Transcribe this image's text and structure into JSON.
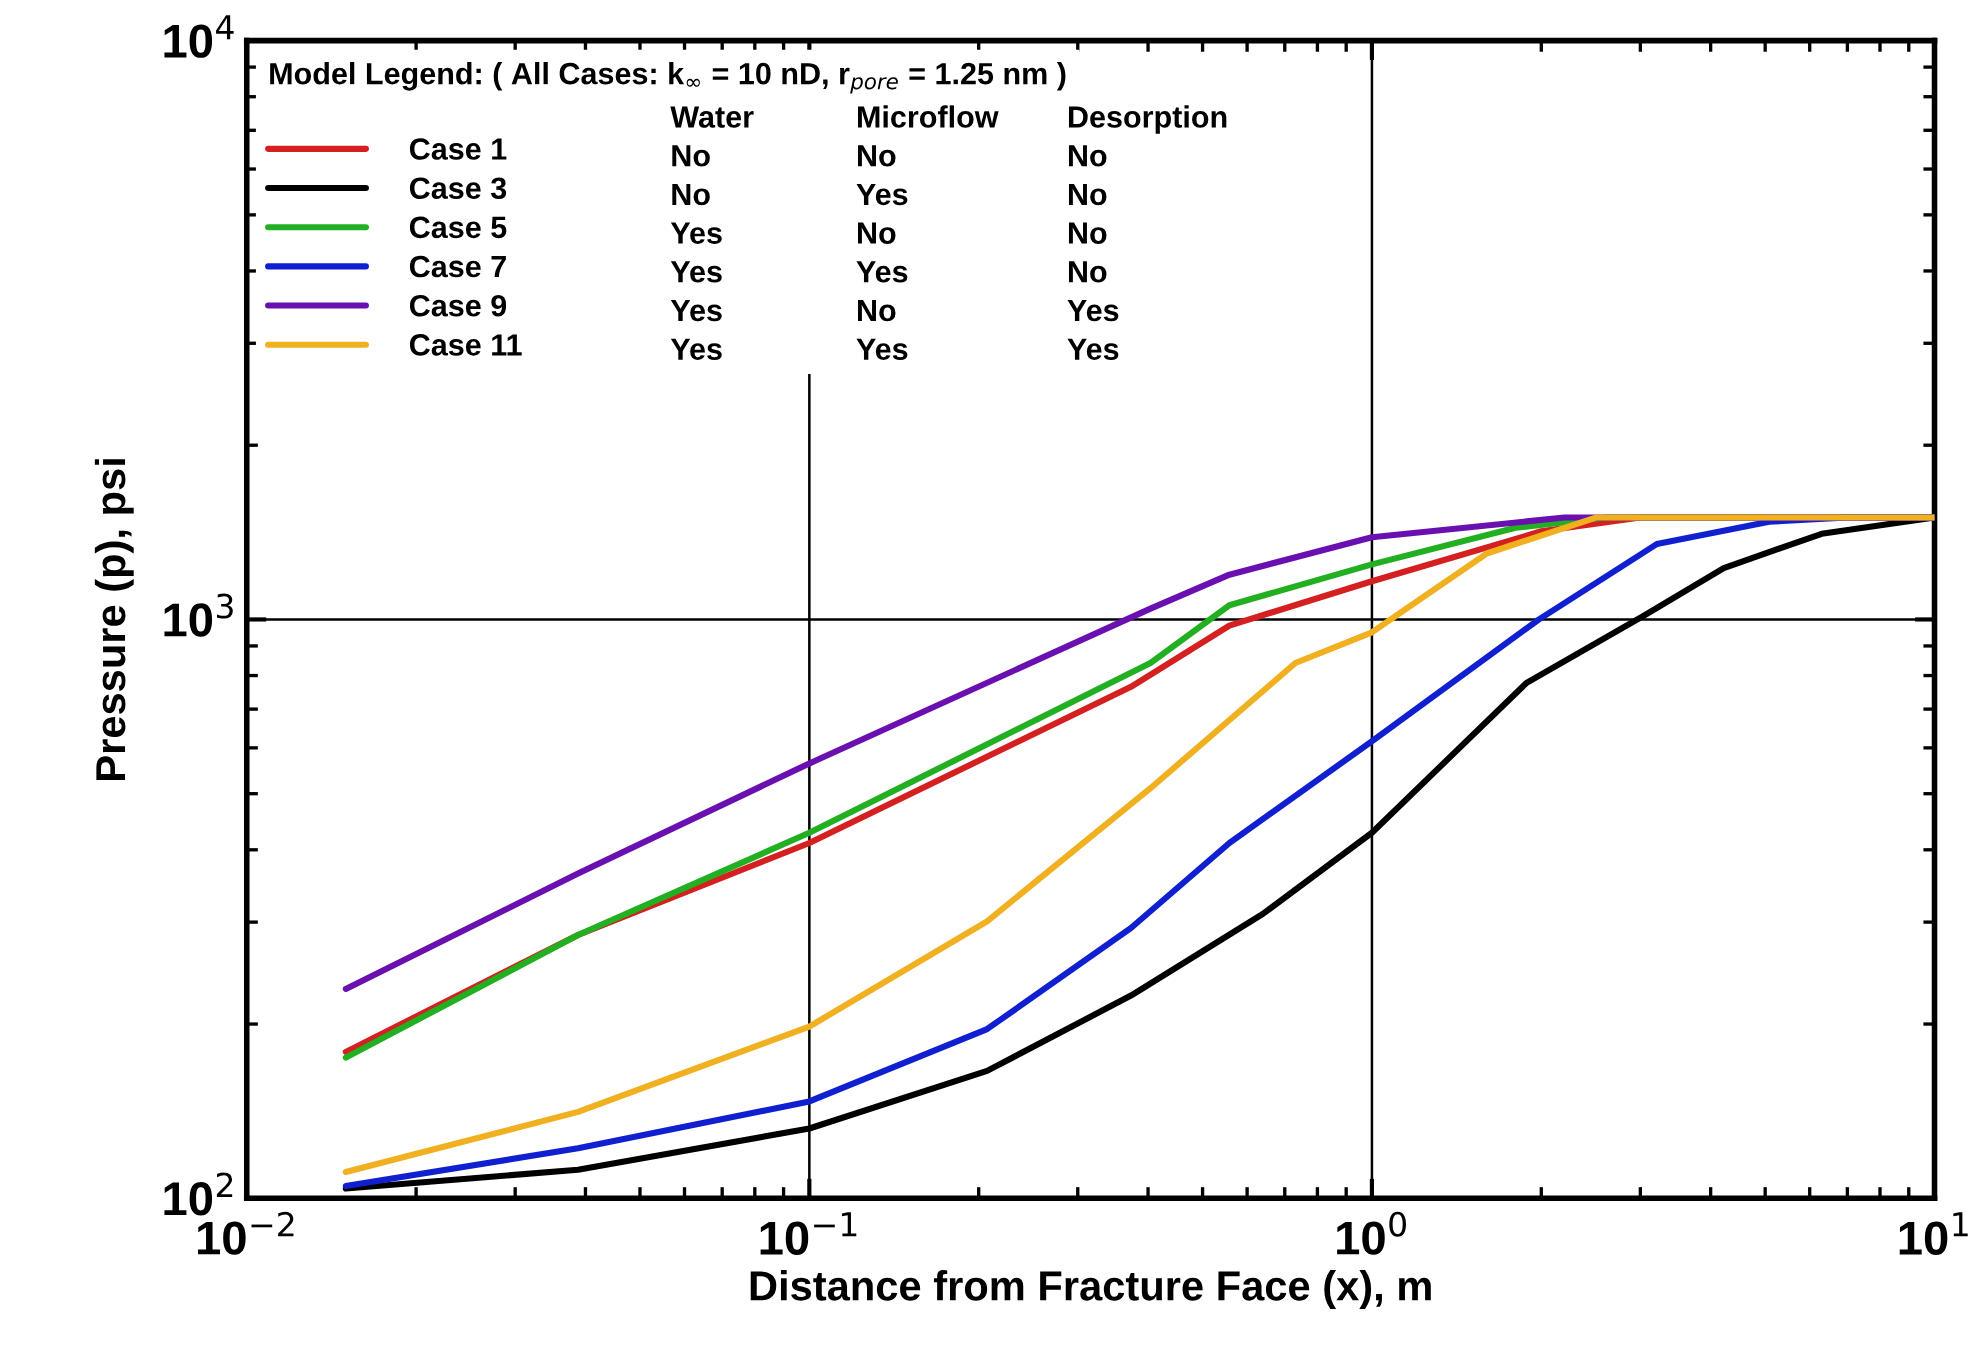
{
  "chart_data": {
    "type": "line",
    "xlabel": "Distance from Fracture Face (x), m",
    "ylabel": "Pressure (p), psi",
    "legend_title": "Model Legend: ( All Cases: k$_{∞}$ = 10 nD, r$_{pore}$ = 1.25 nm )",
    "log": "xy",
    "xlim": [
      0.01,
      10
    ],
    "ylim": [
      100,
      10000
    ],
    "xticks": [
      {
        "value": 0.01,
        "label": "10$^{−2}$"
      },
      {
        "value": 0.1,
        "label": "10$^{−1}$"
      },
      {
        "value": 1,
        "label": "10$^{0}$"
      },
      {
        "value": 10,
        "label": "10$^{1}$"
      }
    ],
    "yticks": [
      {
        "value": 100,
        "label": "10$^{2}$"
      },
      {
        "value": 1000,
        "label": "10$^{3}$"
      },
      {
        "value": 10000,
        "label": "10$^{4}$"
      }
    ],
    "grid": true,
    "legend": "top left",
    "line_style": "solid",
    "marker": "none",
    "annotations": [
      "Water",
      "Microflow",
      "Desorption",
      "No",
      "No",
      "No",
      "No",
      "Yes",
      "No",
      "Yes",
      "No",
      "No",
      "Yes",
      "Yes",
      "No",
      "Yes",
      "No",
      "Yes",
      "Yes",
      "Yes",
      "Yes"
    ],
    "series": [
      {
        "name": "Case 1",
        "color": "#d42020",
        "x": [
          0.015,
          0.0388,
          0.1,
          0.373,
          0.558,
          1,
          2,
          3,
          10
        ],
        "values": [
          179,
          285,
          411,
          765,
          976,
          1164,
          1420,
          1500,
          1500
        ]
      },
      {
        "name": "Case 3",
        "color": "#000000",
        "x": [
          0.015,
          0.0388,
          0.1,
          0.207,
          0.373,
          0.64,
          1,
          1.88,
          3.05,
          4.22,
          6.3,
          10
        ],
        "values": [
          104,
          112,
          132,
          166,
          224,
          310,
          428,
          776,
          1016,
          1227,
          1406,
          1500
        ]
      },
      {
        "name": "Case 5",
        "color": "#22b022",
        "x": [
          0.015,
          0.0388,
          0.1,
          0.404,
          0.558,
          1,
          1.8,
          2.6,
          10
        ],
        "values": [
          175,
          285,
          428,
          841,
          1058,
          1245,
          1440,
          1500,
          1500
        ]
      },
      {
        "name": "Case 7",
        "color": "#1020d0",
        "x": [
          0.015,
          0.0388,
          0.1,
          0.207,
          0.373,
          0.558,
          1,
          1.98,
          3.21,
          5.08,
          7,
          10
        ],
        "values": [
          105,
          122,
          147,
          196,
          293,
          411,
          616,
          1000,
          1350,
          1475,
          1500,
          1500
        ]
      },
      {
        "name": "Case 9",
        "color": "#6a10b0",
        "x": [
          0.015,
          0.0388,
          0.1,
          0.404,
          0.558,
          1,
          2.2,
          10
        ],
        "values": [
          230,
          364,
          564,
          1044,
          1195,
          1387,
          1500,
          1500
        ]
      },
      {
        "name": "Case 11",
        "color": "#f0b020",
        "x": [
          0.015,
          0.0388,
          0.1,
          0.207,
          0.404,
          0.731,
          1,
          1.6,
          2.5,
          10
        ],
        "values": [
          111,
          141,
          198,
          301,
          511,
          841,
          950,
          1300,
          1500,
          1500
        ]
      }
    ]
  }
}
